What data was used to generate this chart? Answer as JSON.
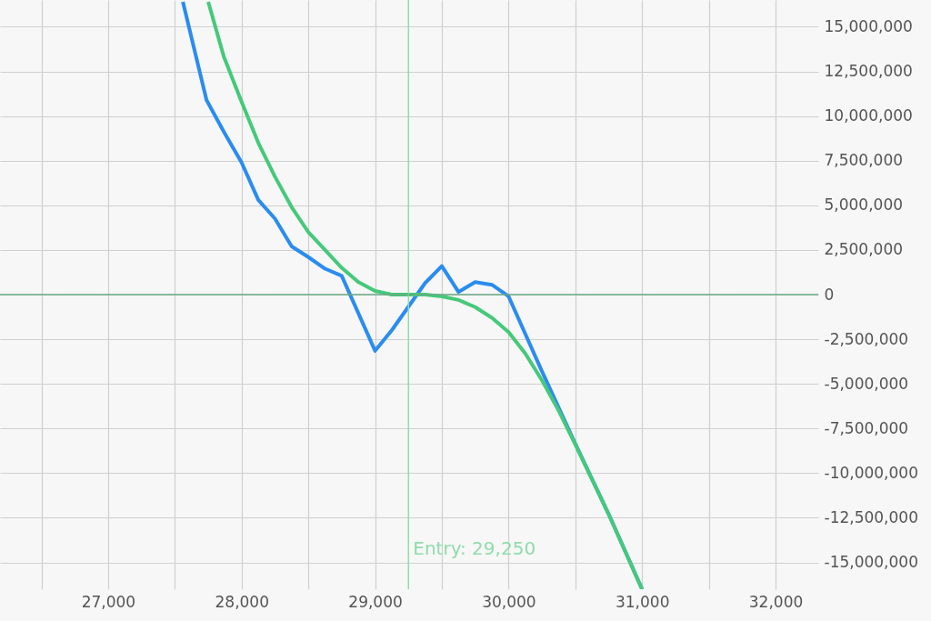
{
  "chart_data": {
    "type": "line",
    "xlim": [
      26190,
      32320
    ],
    "ylim": [
      -16500000,
      16500000
    ],
    "xticks": [
      {
        "value": 26500,
        "label": null
      },
      {
        "value": 27000,
        "label": "27,000"
      },
      {
        "value": 27500,
        "label": null
      },
      {
        "value": 28000,
        "label": "28,000"
      },
      {
        "value": 28500,
        "label": null
      },
      {
        "value": 29000,
        "label": "29,000"
      },
      {
        "value": 29500,
        "label": null
      },
      {
        "value": 30000,
        "label": "30,000"
      },
      {
        "value": 30500,
        "label": null
      },
      {
        "value": 31000,
        "label": "31,000"
      },
      {
        "value": 31500,
        "label": null
      },
      {
        "value": 32000,
        "label": "32,000"
      }
    ],
    "yticks": [
      {
        "value": -15000000,
        "label": "-15,000,000"
      },
      {
        "value": -12500000,
        "label": "-12,500,000"
      },
      {
        "value": -10000000,
        "label": "-10,000,000"
      },
      {
        "value": -7500000,
        "label": "-7,500,000"
      },
      {
        "value": -5000000,
        "label": "-5,000,000"
      },
      {
        "value": -2500000,
        "label": "-2,500,000"
      },
      0,
      {
        "value": 2500000,
        "label": "2,500,000"
      },
      {
        "value": 5000000,
        "label": "5,000,000"
      },
      {
        "value": 7500000,
        "label": "7,500,000"
      },
      {
        "value": 10000000,
        "label": "10,000,000"
      },
      {
        "value": 12500000,
        "label": "12,500,000"
      },
      {
        "value": 15000000,
        "label": "15,000,000"
      }
    ],
    "grid": true,
    "marker": "none",
    "line_style": "solid",
    "series": [
      {
        "color": "#2a8cf0",
        "x": [
          27560,
          27737,
          27868,
          28000,
          28125,
          28250,
          28375,
          28500,
          28625,
          28750,
          29000,
          29125,
          29375,
          29500,
          29625,
          29750,
          29875,
          30000,
          30250,
          30500,
          30750,
          31000
        ],
        "values": [
          16400000,
          10900000,
          9100000,
          7400000,
          5300000,
          4250000,
          2700000,
          2100000,
          1450000,
          1050000,
          -3150000,
          -2000000,
          650000,
          1600000,
          150000,
          700000,
          550000,
          -100000,
          -4300000,
          -8350000,
          -12300000,
          -16500000
        ]
      },
      {
        "color": "#45c97a",
        "x": [
          27750,
          27868,
          28000,
          28125,
          28250,
          28375,
          28500,
          28625,
          28750,
          28875,
          29000,
          29125,
          29250,
          29375,
          29500,
          29625,
          29750,
          29875,
          30000,
          30125,
          30250,
          30375,
          30500,
          30750,
          31000
        ],
        "values": [
          16400000,
          13300000,
          10800000,
          8500000,
          6600000,
          4900000,
          3500000,
          2500000,
          1500000,
          700000,
          200000,
          0,
          0,
          0,
          -100000,
          -300000,
          -700000,
          -1300000,
          -2100000,
          -3300000,
          -4800000,
          -6500000,
          -8400000,
          -12300000,
          -16500000
        ]
      }
    ],
    "ref_lines": [
      {
        "axis": "x",
        "value": 29250,
        "label": "Entry: 29,250",
        "color": "#8fdcaa"
      },
      {
        "axis": "y",
        "value": 0,
        "color": "#6aa884"
      }
    ]
  }
}
